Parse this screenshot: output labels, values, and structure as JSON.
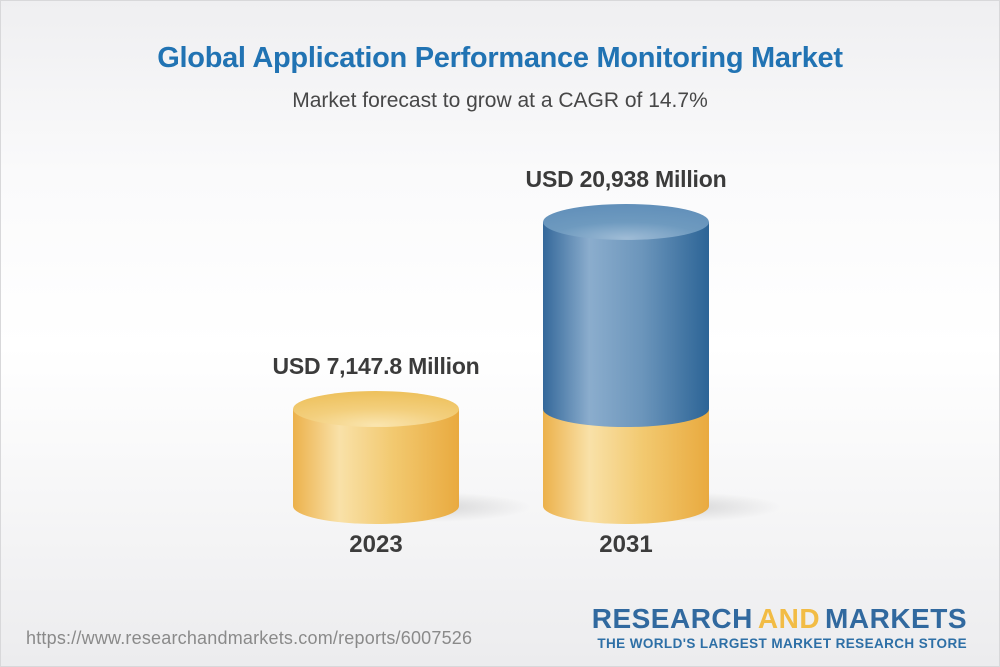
{
  "page": {
    "background_top": "#EFEFF1",
    "background_mid": "#FFFFFF",
    "background_bottom": "#ECECEE",
    "border_color": "#D8D8DA"
  },
  "header": {
    "title": "Global Application Performance Monitoring Market",
    "title_color": "#2173B3",
    "subtitle": "Market forecast to grow at a CAGR of 14.7%",
    "subtitle_color": "#474747"
  },
  "chart_data": {
    "type": "bar",
    "bar_style": "3d-cylinder-stacked",
    "title": "Global Application Performance Monitoring Market",
    "subtitle": "Market forecast to grow at a CAGR of 14.7%",
    "cagr_percent": 14.7,
    "unit": "USD Million",
    "categories": [
      "2023",
      "2031"
    ],
    "values": [
      7147.8,
      20938
    ],
    "value_labels": [
      "USD 7,147.8 Million",
      "USD 20,938 Million"
    ],
    "ylim": [
      0,
      20938
    ],
    "grid": false,
    "legend": false,
    "colors": {
      "yellow_body": [
        "#ECB14B",
        "#F9E1A8",
        "#F2C970",
        "#E9AA3F"
      ],
      "yellow_top": [
        "#FAE5AF",
        "#F3CF7D",
        "#EEC25F"
      ],
      "blue_body": [
        "#34689A",
        "#8BADCD",
        "#6B95BB",
        "#2C6496"
      ],
      "blue_top": [
        "#9FBCD6",
        "#6E9ABF",
        "#6290BA"
      ]
    }
  },
  "footer": {
    "url": "https://www.researchandmarkets.com/reports/6007526",
    "logo": {
      "word1": "RESEARCH",
      "word2": "AND",
      "word3": "MARKETS",
      "tagline": "THE WORLD'S LARGEST MARKET RESEARCH STORE",
      "blue": "#31699F",
      "gold": "#F2BC45",
      "tagline_color": "#2D6FA6"
    }
  }
}
